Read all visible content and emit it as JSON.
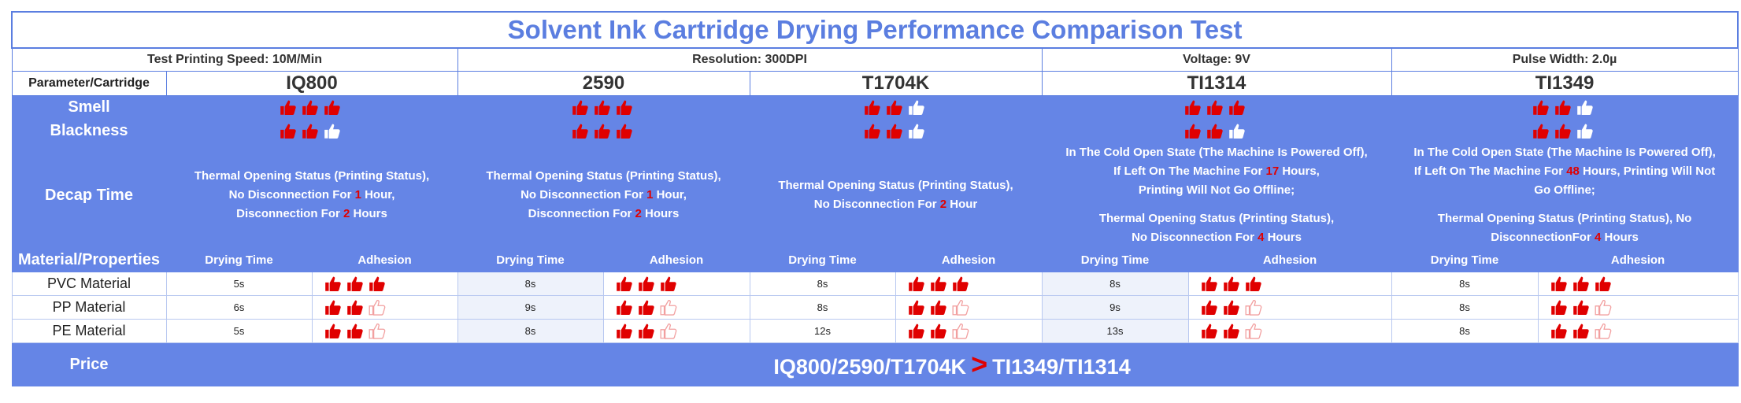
{
  "title": "Solvent Ink Cartridge Drying Performance Comparison Test",
  "info": [
    {
      "label": "Test Printing Speed:",
      "value": "10M/Min"
    },
    {
      "label": "Resolution:",
      "value": "300DPI"
    },
    {
      "label": "Voltage:",
      "value": "9V"
    },
    {
      "label": "Pulse Width:",
      "value": "2.0µ"
    }
  ],
  "header_label": "Parameter/Cartridge",
  "cartridges": [
    {
      "name": "IQ800",
      "smell": 3,
      "blackness": 2,
      "decap": {
        "a": "Thermal Opening Status (Printing Status),",
        "b": "No Disconnection For ",
        "b_num": "1",
        "b_tail": " Hour,",
        "c": "Disconnection For ",
        "c_num": "2",
        "c_tail": " Hours"
      },
      "materials": [
        {
          "drying": "5s",
          "adhesion": 3
        },
        {
          "drying": "6s",
          "adhesion": 2
        },
        {
          "drying": "5s",
          "adhesion": 2
        }
      ]
    },
    {
      "name": "2590",
      "smell": 3,
      "blackness": 3,
      "decap": {
        "a": "Thermal Opening Status (Printing Status),",
        "b": "No Disconnection For ",
        "b_num": "1",
        "b_tail": " Hour,",
        "c": "Disconnection For ",
        "c_num": "2",
        "c_tail": " Hours"
      },
      "materials": [
        {
          "drying": "8s",
          "adhesion": 3
        },
        {
          "drying": "9s",
          "adhesion": 2
        },
        {
          "drying": "8s",
          "adhesion": 2
        }
      ]
    },
    {
      "name": "T1704K",
      "smell": 2,
      "blackness": 2,
      "decap": {
        "a": "Thermal Opening Status (Printing Status),",
        "b": "No Disconnection For ",
        "b_num": "2",
        "b_tail": " Hour"
      },
      "materials": [
        {
          "drying": "8s",
          "adhesion": 3
        },
        {
          "drying": "8s",
          "adhesion": 2
        },
        {
          "drying": "12s",
          "adhesion": 2
        }
      ]
    },
    {
      "name": "TI1314",
      "smell": 3,
      "blackness": 2,
      "decap": {
        "a": "In The Cold Open State (The Machine Is Powered Off),",
        "b": "If Left On The Machine For ",
        "b_num": "17",
        "b_tail": " Hours,",
        "c": "Printing Will Not Go Offline;",
        "d": "Thermal Opening Status (Printing Status),",
        "e": "No Disconnection For ",
        "e_num": "4",
        "e_tail": " Hours"
      },
      "materials": [
        {
          "drying": "8s",
          "adhesion": 3
        },
        {
          "drying": "9s",
          "adhesion": 2
        },
        {
          "drying": "13s",
          "adhesion": 2
        }
      ]
    },
    {
      "name": "TI1349",
      "smell": 2,
      "blackness": 2,
      "decap": {
        "a": "In The Cold Open State (The Machine Is Powered Off),",
        "b": "If Left On The Machine For ",
        "b_num": "48",
        "b_tail": " Hours, Printing Will Not",
        "c": "Go Offline;",
        "d": "Thermal Opening Status (Printing Status), No",
        "e": "DisconnectionFor ",
        "e_num": "4",
        "e_tail": " Hours"
      },
      "materials": [
        {
          "drying": "8s",
          "adhesion": 3
        },
        {
          "drying": "8s",
          "adhesion": 2
        },
        {
          "drying": "8s",
          "adhesion": 2
        }
      ]
    }
  ],
  "row_labels": {
    "smell": "Smell",
    "blackness": "Blackness",
    "decap": "Decap Time",
    "material": "Material/Properties",
    "price": "Price"
  },
  "sub_headers": {
    "drying": "Drying Time",
    "adhesion": "Adhesion"
  },
  "materials": [
    "PVC Material",
    "PP Material",
    "PE Material"
  ],
  "price": {
    "left": "IQ800/2590/T1704K",
    "symbol": ">",
    "right": "TI1349/TI1314"
  },
  "colors": {
    "accent": "#5b7ee0",
    "band": "#6585e6",
    "thumb": "#e00000"
  },
  "icons": {
    "thumb": "thumbs-up-icon"
  }
}
